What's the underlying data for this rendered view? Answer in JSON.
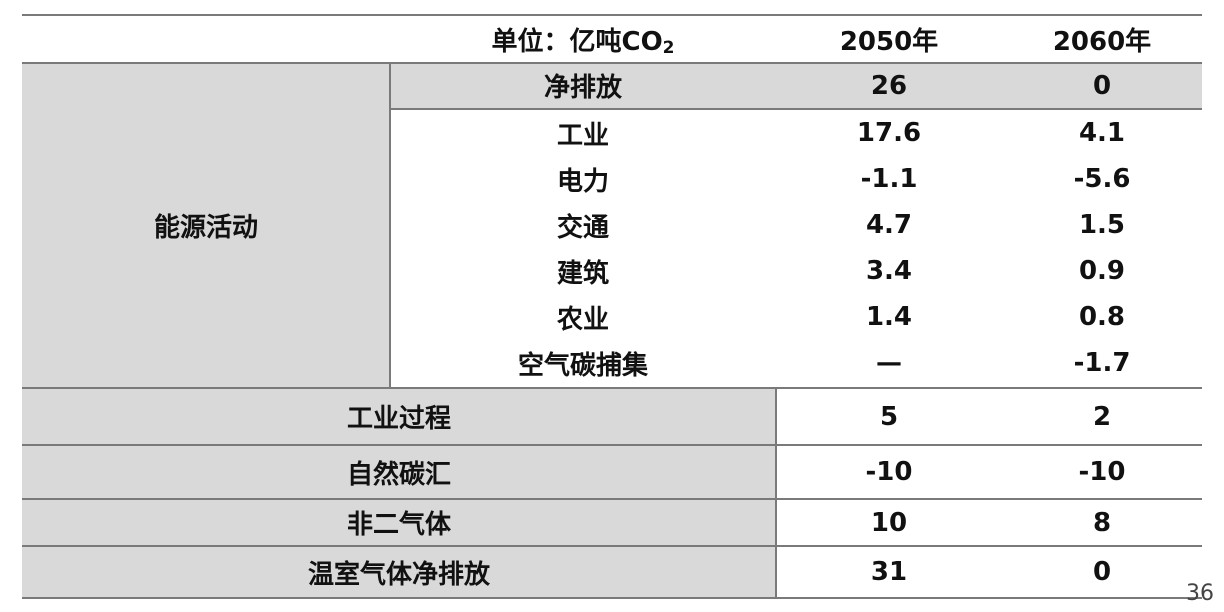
{
  "header": {
    "unit_prefix": "单位：亿吨CO",
    "unit_sub": "2",
    "col_2050": "2050年",
    "col_2060": "2060年"
  },
  "energy": {
    "label": "能源活动",
    "net_label": "净排放",
    "net_2050": "26",
    "net_2060": "0",
    "rows": [
      {
        "label": "工业",
        "v2050": "17.6",
        "v2060": "4.1"
      },
      {
        "label": "电力",
        "v2050": "-1.1",
        "v2060": "-5.6"
      },
      {
        "label": "交通",
        "v2050": "4.7",
        "v2060": "1.5"
      },
      {
        "label": "建筑",
        "v2050": "3.4",
        "v2060": "0.9"
      },
      {
        "label": "农业",
        "v2050": "1.4",
        "v2060": "0.8"
      },
      {
        "label": "空气碳捕集",
        "v2050": "—",
        "v2060": "-1.7"
      }
    ]
  },
  "bottom_rows": [
    {
      "label": "工业过程",
      "v2050": "5",
      "v2060": "2"
    },
    {
      "label": "自然碳汇",
      "v2050": "-10",
      "v2060": "-10"
    },
    {
      "label": "非二气体",
      "v2050": "10",
      "v2060": "8"
    },
    {
      "label": "温室气体净排放",
      "v2050": "31",
      "v2060": "0"
    }
  ],
  "page_number": "36"
}
